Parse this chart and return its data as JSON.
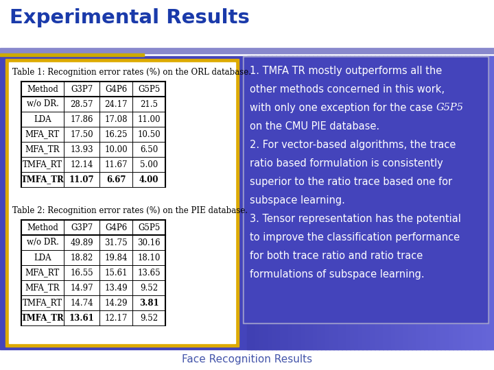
{
  "title": "Experimental Results",
  "title_color": "#1a3aaa",
  "slide_bg": "#ffffff",
  "footer": "Face Recognition Results",
  "footer_color": "#4455aa",
  "table1_title": "Table 1: Recognition error rates (%) on the ORL database.",
  "table1_headers": [
    "Method",
    "G3P7",
    "G4P6",
    "G5P5"
  ],
  "table1_rows": [
    [
      "w/o DR.",
      "28.57",
      "24.17",
      "21.5"
    ],
    [
      "LDA",
      "17.86",
      "17.08",
      "11.00"
    ],
    [
      "MFA_RT",
      "17.50",
      "16.25",
      "10.50"
    ],
    [
      "MFA_TR",
      "13.93",
      "10.00",
      "6.50"
    ],
    [
      "TMFA_RT",
      "12.14",
      "11.67",
      "5.00"
    ],
    [
      "TMFA_TR",
      "11.07",
      "6.67",
      "4.00"
    ]
  ],
  "table1_bold_last": true,
  "table2_title": "Table 2: Recognition error rates (%) on the PIE database.",
  "table2_headers": [
    "Method",
    "G3P7",
    "G4P6",
    "G5P5"
  ],
  "table2_rows": [
    [
      "w/o DR.",
      "49.89",
      "31.75",
      "30.16"
    ],
    [
      "LDA",
      "18.82",
      "19.84",
      "18.10"
    ],
    [
      "MFA_RT",
      "16.55",
      "15.61",
      "13.65"
    ],
    [
      "MFA_TR",
      "14.97",
      "13.49",
      "9.52"
    ],
    [
      "TMFA_RT",
      "14.74",
      "14.29",
      "3.81"
    ],
    [
      "TMFA_TR",
      "13.61",
      "12.17",
      "9.52"
    ]
  ],
  "table2_bold_cells": {
    "4": [
      3
    ],
    "5": [
      0,
      1
    ]
  },
  "bg_blue": "#4444bb",
  "bg_blue2": "#5555dd",
  "title_bar_purple": "#7777cc",
  "title_bar_yellow": "#ddaa00",
  "left_border_color": "#ddaa00",
  "left_bg": "#ffffff",
  "right_box_border": "#9999cc",
  "right_box_bg_dark": "#4444bb",
  "text_lines": [
    "1. TMFA TR mostly outperforms all the",
    "other methods concerned in this work,",
    "with only one exception for the case |G5P5|",
    "on the CMU PIE database.",
    "2. For vector-based algorithms, the trace",
    "ratio based formulation is consistently",
    "superior to the ratio trace based one for",
    "subspace learning.",
    "3. Tensor representation has the potential",
    "to improve the classification performance",
    "for both trace ratio and ratio trace",
    "formulations of subspace learning."
  ]
}
